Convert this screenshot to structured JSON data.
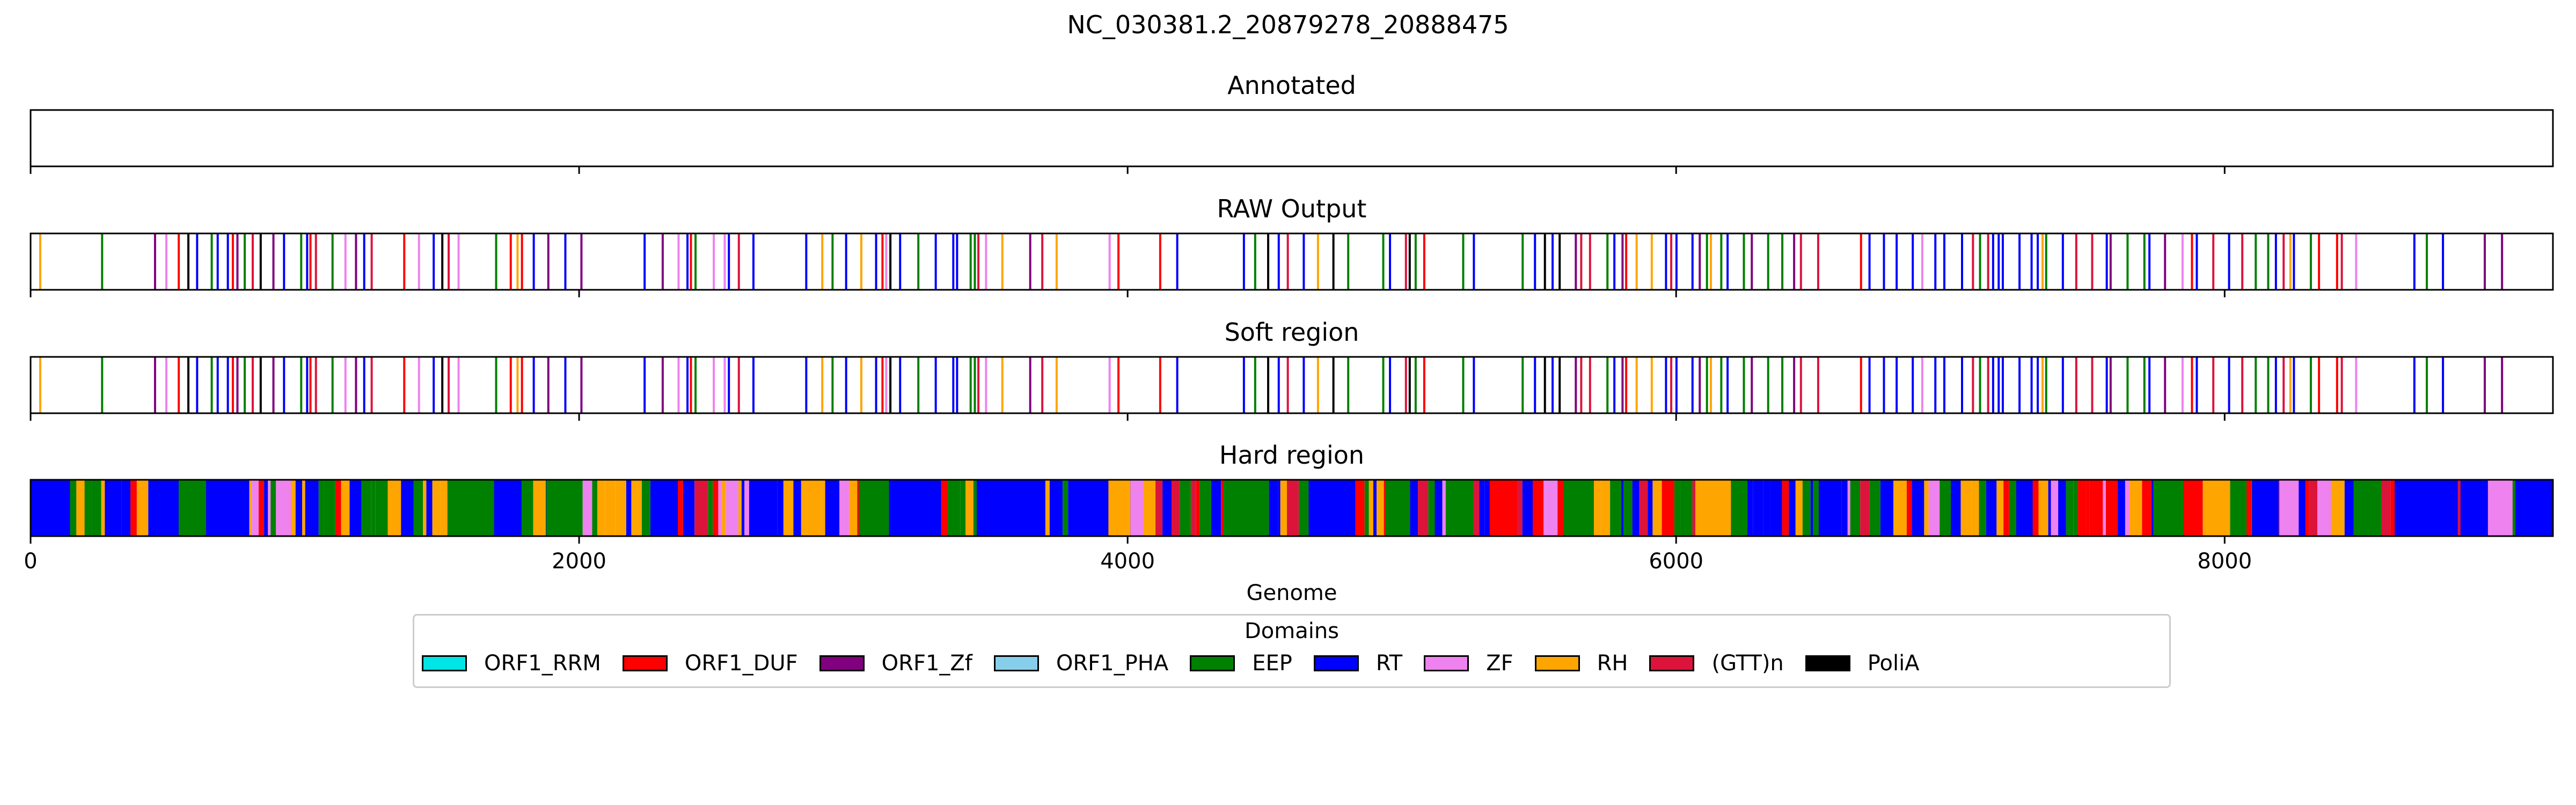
{
  "figure_title": "NC_030381.2_20879278_20888475",
  "colors": {
    "ORF1_RRM": "#00e5e5",
    "ORF1_DUF": "#ff0000",
    "ORF1_Zf": "#800080",
    "ORF1_PHA": "#87ceeb",
    "EEP": "#008000",
    "RT": "#0000ff",
    "ZF": "#ee82ee",
    "RH": "#ffa500",
    "(GTT)n": "#dc143c",
    "PoliA": "#000000"
  },
  "chart_data": [
    {
      "type": "track",
      "title": "Annotated",
      "xlim": [
        0,
        9197
      ],
      "x_ticks": [
        0,
        2000,
        4000,
        6000,
        8000
      ],
      "features": []
    },
    {
      "type": "track",
      "title": "RAW Output",
      "xlim": [
        0,
        9197
      ],
      "x_ticks": [
        0,
        2000,
        4000,
        6000,
        8000
      ],
      "pattern": "raw",
      "seed": 7
    },
    {
      "type": "track",
      "title": "Soft region",
      "xlim": [
        0,
        9197
      ],
      "x_ticks": [
        0,
        2000,
        4000,
        6000,
        8000
      ],
      "pattern": "raw",
      "seed": 7
    },
    {
      "type": "track",
      "title": "Hard region",
      "xlim": [
        0,
        9197
      ],
      "x_ticks": [
        0,
        2000,
        4000,
        6000,
        8000
      ],
      "tick_labels": [
        "0",
        "2000",
        "4000",
        "6000",
        "8000"
      ],
      "xlabel": "Genome",
      "pattern": "hard",
      "seed": 11,
      "features": [
        {
          "start": 0,
          "end": 120,
          "domain": "RT"
        },
        {
          "start": 460,
          "end": 540,
          "domain": "RT"
        },
        {
          "start": 540,
          "end": 640,
          "domain": "EEP"
        },
        {
          "start": 640,
          "end": 780,
          "domain": "RT"
        },
        {
          "start": 1520,
          "end": 1690,
          "domain": "EEP"
        },
        {
          "start": 1690,
          "end": 1790,
          "domain": "RT"
        },
        {
          "start": 1880,
          "end": 2010,
          "domain": "EEP"
        },
        {
          "start": 2290,
          "end": 2360,
          "domain": "RT"
        },
        {
          "start": 2620,
          "end": 2720,
          "domain": "RT"
        },
        {
          "start": 3020,
          "end": 3130,
          "domain": "EEP"
        },
        {
          "start": 3130,
          "end": 3320,
          "domain": "RT"
        },
        {
          "start": 3450,
          "end": 3700,
          "domain": "RT"
        },
        {
          "start": 3800,
          "end": 3920,
          "domain": "RT"
        },
        {
          "start": 3930,
          "end": 4010,
          "domain": "RH"
        },
        {
          "start": 4350,
          "end": 4490,
          "domain": "EEP"
        },
        {
          "start": 4660,
          "end": 4830,
          "domain": "RT"
        },
        {
          "start": 4940,
          "end": 5030,
          "domain": "EEP"
        },
        {
          "start": 5160,
          "end": 5260,
          "domain": "EEP"
        },
        {
          "start": 5320,
          "end": 5420,
          "domain": "ORF1_DUF"
        },
        {
          "start": 5590,
          "end": 5700,
          "domain": "EEP"
        },
        {
          "start": 6070,
          "end": 6200,
          "domain": "RH"
        },
        {
          "start": 6200,
          "end": 6260,
          "domain": "EEP"
        },
        {
          "start": 6520,
          "end": 6600,
          "domain": "RT"
        },
        {
          "start": 7240,
          "end": 7300,
          "domain": "RT"
        },
        {
          "start": 7740,
          "end": 7850,
          "domain": "EEP"
        },
        {
          "start": 7850,
          "end": 7920,
          "domain": "ORF1_DUF"
        },
        {
          "start": 7920,
          "end": 8020,
          "domain": "RH"
        },
        {
          "start": 8020,
          "end": 8080,
          "domain": "EEP"
        },
        {
          "start": 8100,
          "end": 8170,
          "domain": "RT"
        },
        {
          "start": 8200,
          "end": 8270,
          "domain": "ZF"
        },
        {
          "start": 8470,
          "end": 8560,
          "domain": "EEP"
        },
        {
          "start": 8620,
          "end": 8850,
          "domain": "RT"
        },
        {
          "start": 8860,
          "end": 8960,
          "domain": "RT"
        },
        {
          "start": 8960,
          "end": 9050,
          "domain": "ZF"
        },
        {
          "start": 9060,
          "end": 9197,
          "domain": "RT"
        }
      ]
    }
  ],
  "legend": {
    "title": "Domains",
    "items": [
      {
        "label": "ORF1_RRM",
        "color": "#00e5e5"
      },
      {
        "label": "ORF1_DUF",
        "color": "#ff0000"
      },
      {
        "label": "ORF1_Zf",
        "color": "#800080"
      },
      {
        "label": "ORF1_PHA",
        "color": "#87ceeb"
      },
      {
        "label": "EEP",
        "color": "#008000"
      },
      {
        "label": "RT",
        "color": "#0000ff"
      },
      {
        "label": "ZF",
        "color": "#ee82ee"
      },
      {
        "label": "RH",
        "color": "#ffa500"
      },
      {
        "label": "(GTT)n",
        "color": "#dc143c"
      },
      {
        "label": "PoliA",
        "color": "#000000"
      }
    ]
  }
}
